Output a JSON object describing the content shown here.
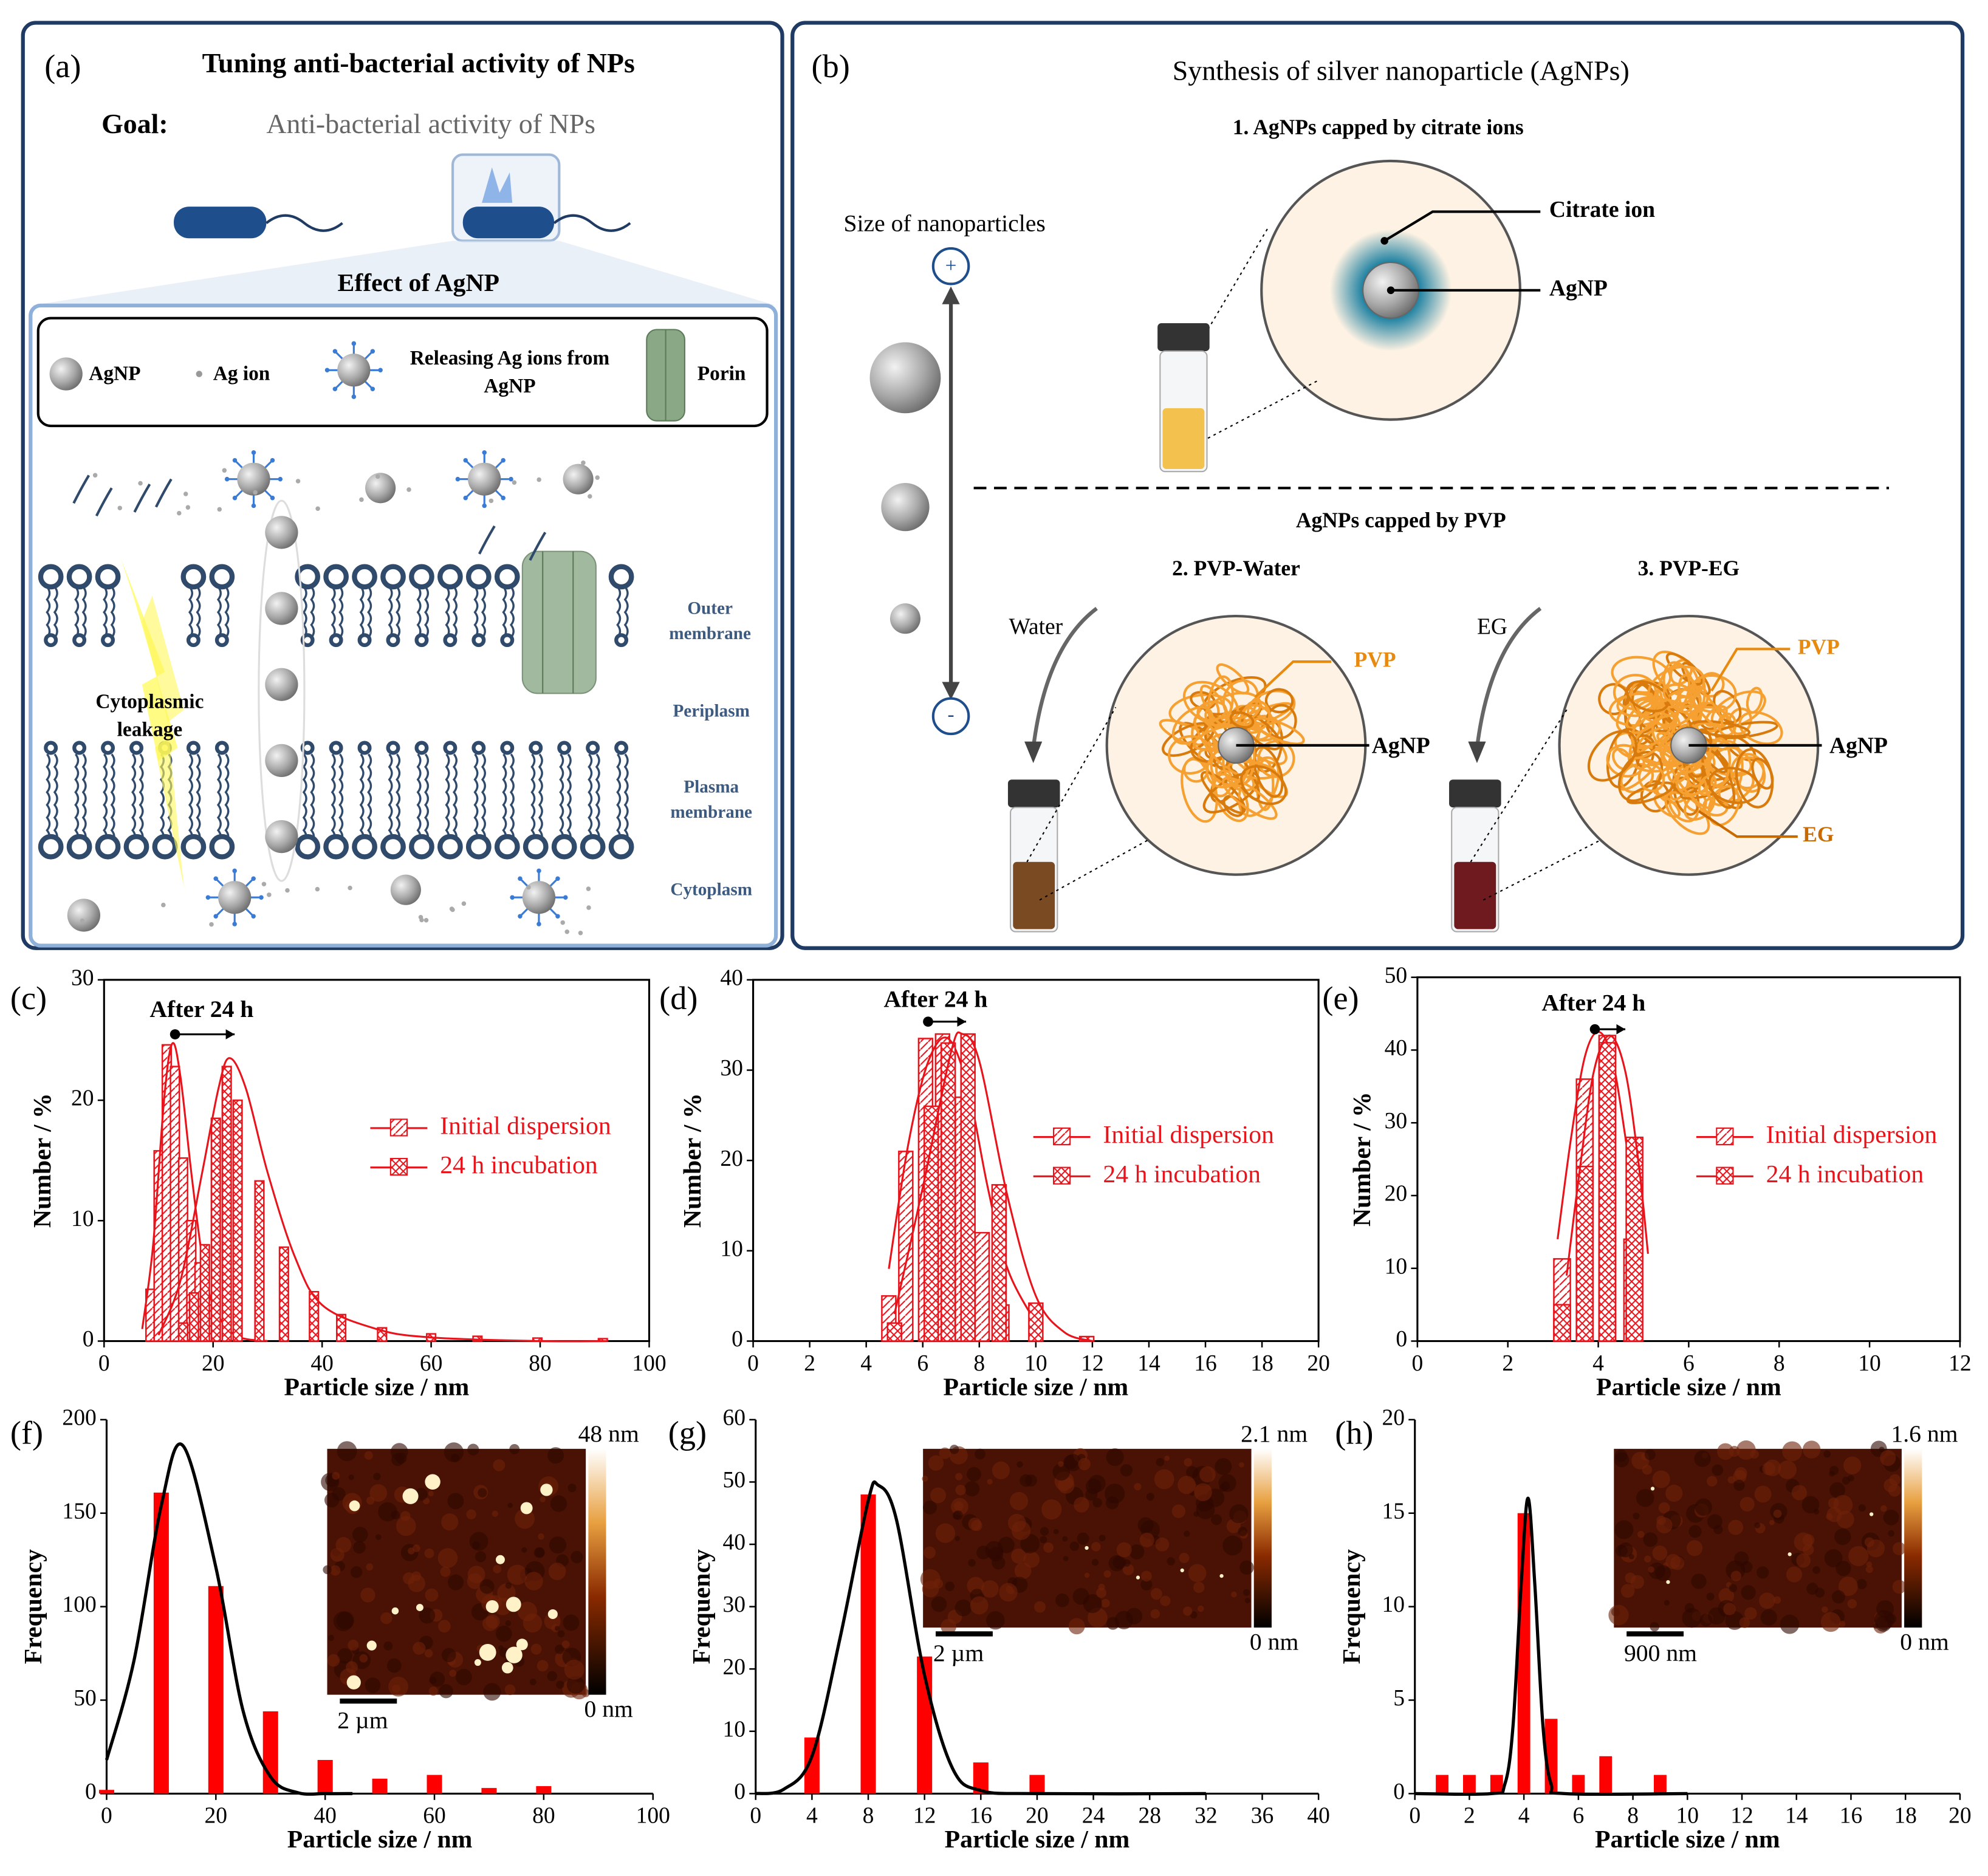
{
  "diagrams": {
    "a": {
      "label": "(a)",
      "title": "Tuning anti-bacterial activity of NPs",
      "goal_label": "Goal:",
      "goal": "Anti-bacterial activity of NPs",
      "effect_title": "Effect of AgNP",
      "legend": {
        "agnp": "AgNP",
        "ag_ion": "Ag ion",
        "releasing": [
          "Releasing Ag ions from",
          "AgNP"
        ],
        "porin": "Porin"
      },
      "leakage": [
        "Cytoplasmic",
        "leakage"
      ],
      "regions": {
        "outer": [
          "Outer",
          "membrane"
        ],
        "periplasm": "Periplasm",
        "plasma": [
          "Plasma",
          "membrane"
        ],
        "cytoplasm": "Cytoplasm"
      }
    },
    "b": {
      "label": "(b)",
      "title": "Synthesis of silver nanoparticle (AgNPs)",
      "citrate_title": "1. AgNPs capped by citrate ions",
      "size_label": "Size of nanoparticles",
      "plus": "+",
      "minus": "-",
      "citrate_ion": "Citrate ion",
      "agnp_1": "AgNP",
      "pvp_title": "AgNPs capped by PVP",
      "pvp_water": "2. PVP-Water",
      "pvp_eg": "3. PVP-EG",
      "water": "Water",
      "eg": "EG",
      "pvp_2": "PVP",
      "agnp_2": "AgNP",
      "pvp_3": "PVP",
      "agnp_3": "AgNP",
      "eg_3": "EG"
    }
  },
  "chart_data": [
    {
      "label": "(c)",
      "type": "bar",
      "xlabel": "Particle size / nm",
      "ylabel": "Number / %",
      "annotation": "After 24 h",
      "frame": "box",
      "legend": "right",
      "xlim": [
        0,
        100
      ],
      "xticks": [
        0,
        20,
        40,
        60,
        80,
        100
      ],
      "ylim": [
        0,
        30
      ],
      "yticks": [
        0,
        10,
        20,
        30
      ],
      "series": [
        {
          "name": "Initial dispersion",
          "color": "#e8141c",
          "hatch": "diagonal",
          "x": [
            8.5,
            10,
            11.5,
            13,
            14.5,
            16,
            17.5,
            19
          ],
          "values": [
            4.3,
            15.8,
            24.6,
            22.8,
            15.2,
            10,
            6.5,
            3
          ],
          "fit_x": [
            7,
            9,
            11,
            12.5,
            14,
            16,
            18,
            20,
            24,
            30
          ],
          "fit_values": [
            1,
            8,
            20,
            24.7,
            22,
            14,
            7,
            3,
            0.5,
            0
          ]
        },
        {
          "name": "24 h incubation",
          "color": "#e8141c",
          "hatch": "cross",
          "x": [
            14.5,
            16.5,
            18.5,
            20.5,
            22.5,
            24.5,
            28.5,
            33,
            38.5,
            43.5,
            51,
            60,
            68.5,
            79.5,
            91.5
          ],
          "values": [
            1.5,
            4,
            8,
            18.5,
            22.8,
            20,
            13.3,
            7.8,
            4.1,
            2.2,
            1.1,
            0.6,
            0.4,
            0.25,
            0.2
          ],
          "fit_x": [
            10,
            14,
            18,
            21,
            23,
            26,
            30,
            35,
            40,
            50,
            60,
            80,
            92
          ],
          "fit_values": [
            0.5,
            5,
            14,
            21,
            23.5,
            21,
            14,
            7,
            3,
            1,
            0.3,
            0,
            0
          ]
        }
      ]
    },
    {
      "label": "(d)",
      "type": "bar",
      "xlabel": "Particle size / nm",
      "ylabel": "Number / %",
      "annotation": "After 24 h",
      "frame": "box",
      "legend": "right",
      "xlim": [
        0,
        20
      ],
      "xticks": [
        0,
        2,
        4,
        6,
        8,
        10,
        12,
        14,
        16,
        18,
        20
      ],
      "ylim": [
        0,
        40
      ],
      "yticks": [
        0,
        10,
        20,
        30,
        40
      ],
      "series": [
        {
          "name": "Initial dispersion",
          "color": "#e8141c",
          "hatch": "diagonal",
          "x": [
            4.8,
            5.4,
            6.1,
            6.7,
            7.4,
            8.1,
            8.8
          ],
          "values": [
            5,
            21,
            33.5,
            34,
            27,
            12,
            4
          ],
          "fit_x": [
            4.8,
            5.5,
            6.2,
            6.9,
            7.6,
            8.3,
            9,
            10
          ],
          "fit_values": [
            8,
            22,
            31,
            33.5,
            28,
            17,
            8,
            2
          ]
        },
        {
          "name": "24 h incubation",
          "color": "#e8141c",
          "hatch": "cross",
          "x": [
            5,
            6.3,
            6.9,
            7.6,
            8.7,
            10,
            11.8
          ],
          "values": [
            2,
            26,
            33,
            34,
            17.3,
            4.2,
            0.5
          ],
          "fit_x": [
            5,
            6,
            7,
            7.4,
            8,
            9,
            10,
            11,
            12
          ],
          "fit_values": [
            3,
            17,
            32,
            34,
            31,
            16,
            5,
            1,
            0
          ]
        }
      ]
    },
    {
      "label": "(e)",
      "type": "bar",
      "xlabel": "Particle size / nm",
      "ylabel": "Number / %",
      "annotation": "After 24 h",
      "frame": "box",
      "legend": "right",
      "xlim": [
        0,
        12
      ],
      "xticks": [
        0,
        2,
        4,
        6,
        8,
        10,
        12
      ],
      "ylim": [
        0,
        50
      ],
      "yticks": [
        0,
        10,
        20,
        30,
        40,
        50
      ],
      "series": [
        {
          "name": "Initial dispersion",
          "color": "#e8141c",
          "hatch": "diagonal",
          "x": [
            3.2,
            3.7,
            4.2,
            4.75
          ],
          "values": [
            11.3,
            36,
            42,
            14
          ],
          "fit_x": [
            3.1,
            3.4,
            3.7,
            4,
            4.3,
            4.6,
            4.9
          ],
          "fit_values": [
            14,
            28,
            39,
            42.5,
            39,
            28,
            14
          ]
        },
        {
          "name": "24 h incubation",
          "color": "#e8141c",
          "hatch": "cross",
          "x": [
            3.2,
            3.7,
            4.2,
            4.8
          ],
          "values": [
            5,
            24,
            41,
            28
          ],
          "fit_x": [
            3.3,
            3.6,
            3.9,
            4.25,
            4.6,
            4.9,
            5.1
          ],
          "fit_values": [
            9,
            24,
            37,
            42,
            37,
            24,
            12
          ]
        }
      ]
    },
    {
      "label": "(f)",
      "type": "bar",
      "xlabel": "Particle size / nm",
      "ylabel": "Frequency",
      "frame": "axes",
      "color": "#ff0000",
      "fit_color": "#000000",
      "xlim": [
        0,
        100
      ],
      "xticks": [
        0,
        20,
        40,
        60,
        80,
        100
      ],
      "ylim": [
        0,
        200
      ],
      "yticks": [
        0,
        50,
        100,
        150,
        200
      ],
      "x": [
        0,
        10,
        20,
        30,
        40,
        50,
        60,
        70,
        80
      ],
      "values": [
        2,
        161,
        111,
        44,
        18,
        8,
        10,
        3,
        4
      ],
      "fit_x": [
        0,
        5,
        10,
        14,
        20,
        25,
        30,
        35,
        40,
        45
      ],
      "fit_values": [
        18,
        71,
        154,
        186,
        121,
        44,
        9,
        0.5,
        0,
        0
      ],
      "inset": {
        "colorbar_max": "48 nm",
        "colorbar_min": "0 nm",
        "scale_bar": "2 µm"
      }
    },
    {
      "label": "(g)",
      "type": "bar",
      "xlabel": "Particle size / nm",
      "ylabel": "Frequency",
      "frame": "axes",
      "color": "#ff0000",
      "fit_color": "#000000",
      "xlim": [
        0,
        40
      ],
      "xticks": [
        0,
        4,
        8,
        12,
        16,
        20,
        24,
        28,
        32,
        36,
        40
      ],
      "ylim": [
        0,
        60
      ],
      "yticks": [
        0,
        10,
        20,
        30,
        40,
        50,
        60
      ],
      "x": [
        4,
        8,
        12,
        16,
        20
      ],
      "values": [
        9,
        48,
        22,
        5,
        3
      ],
      "fit_x": [
        0,
        2,
        4,
        6,
        8,
        8.7,
        10,
        12,
        14,
        16,
        20,
        32
      ],
      "fit_values": [
        0,
        0.7,
        6,
        25,
        47,
        49.5,
        44,
        19,
        4,
        0.5,
        0,
        0
      ],
      "inset": {
        "colorbar_max": "2.1 nm",
        "colorbar_min": "0 nm",
        "scale_bar": "2 µm"
      }
    },
    {
      "label": "(h)",
      "type": "bar",
      "xlabel": "Particle size / nm",
      "ylabel": "Frequency",
      "frame": "axes",
      "color": "#ff0000",
      "fit_color": "#000000",
      "xlim": [
        0,
        20
      ],
      "xticks": [
        0,
        2,
        4,
        6,
        8,
        10,
        12,
        14,
        16,
        18,
        20
      ],
      "ylim": [
        0,
        20
      ],
      "yticks": [
        0,
        5,
        10,
        15,
        20
      ],
      "x": [
        1,
        2,
        3,
        4,
        5,
        6,
        7,
        9
      ],
      "values": [
        1,
        1,
        1,
        15,
        4,
        1,
        2,
        1
      ],
      "fit_x": [
        0,
        2.8,
        3.3,
        3.6,
        3.9,
        4.15,
        4.4,
        4.7,
        5,
        5.5,
        10
      ],
      "fit_values": [
        0,
        0,
        0.5,
        3.6,
        11.2,
        15.8,
        11.2,
        3.6,
        0.5,
        0,
        0
      ],
      "inset": {
        "colorbar_max": "1.6 nm",
        "colorbar_min": "0 nm",
        "scale_bar": "900 nm"
      }
    }
  ]
}
